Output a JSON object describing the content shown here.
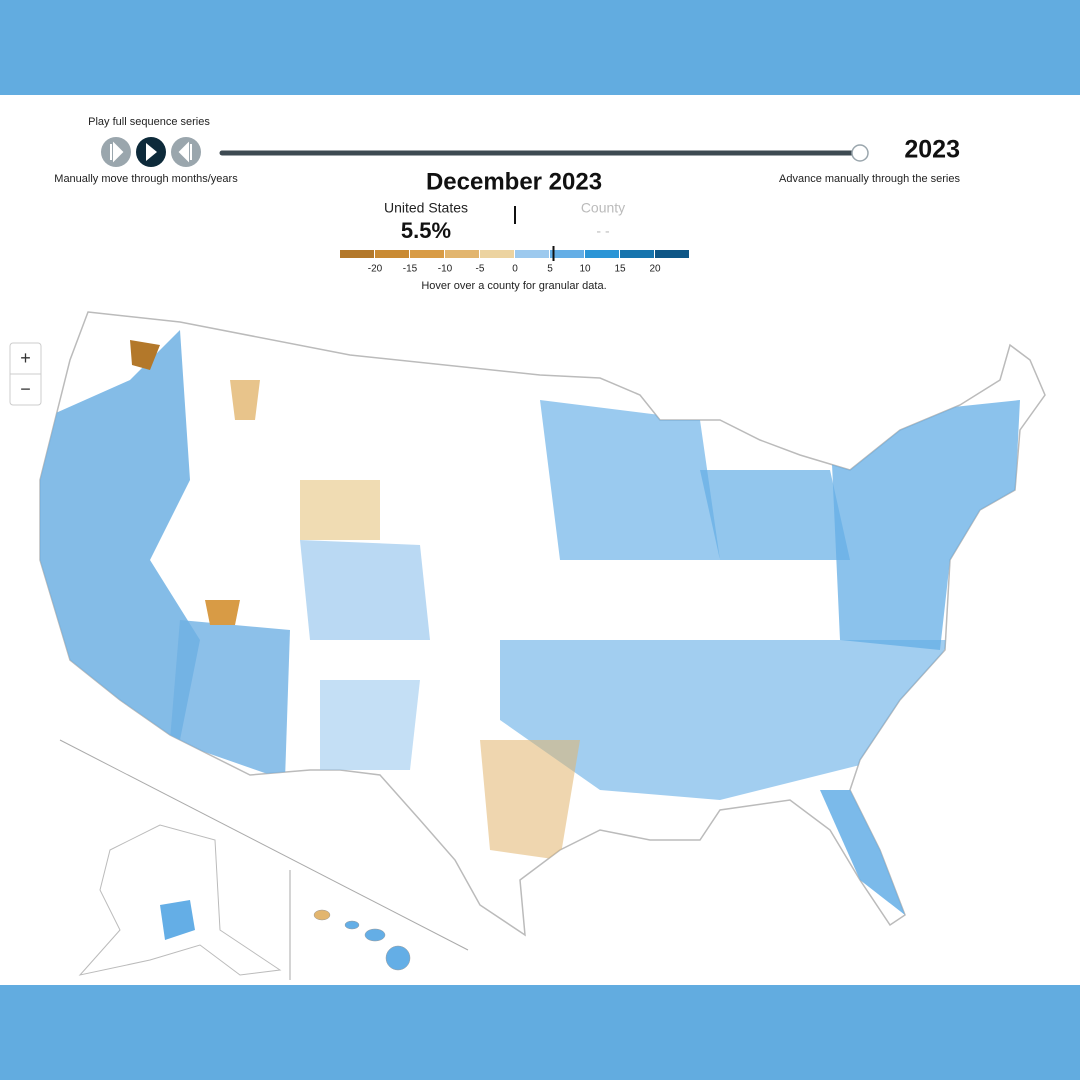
{
  "controls": {
    "play_label": "Play full sequence series",
    "manual_label": "Manually move through months/years",
    "advance_label": "Advance manually through the series",
    "year": "2023"
  },
  "title": "December 2023",
  "summary": {
    "us_label": "United States",
    "us_value": {
      "value": 5.5,
      "label": "5.5%"
    },
    "county_label": "County",
    "county_value": "- -"
  },
  "legend": {
    "ticks": [
      -20,
      -15,
      -10,
      -5,
      0,
      5,
      10,
      15,
      20
    ],
    "colors": [
      "#b3782a",
      "#c98a33",
      "#d89b45",
      "#e2b56e",
      "#ecd3a0",
      "#9cc9ee",
      "#64aee6",
      "#2b95d6",
      "#1674ad",
      "#0e5686"
    ],
    "hint": "Hover over a county for granular data."
  },
  "zoom": {
    "in": "+",
    "out": "−"
  }
}
